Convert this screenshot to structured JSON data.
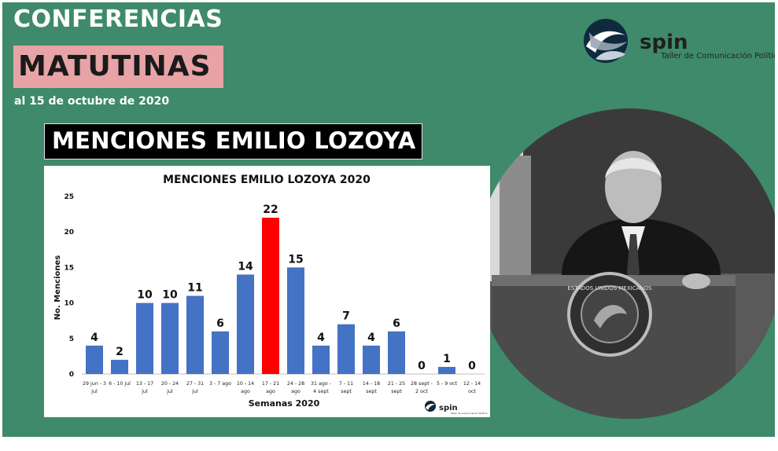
{
  "header": {
    "title_line1": "CONFERENCIAS",
    "title_line2": "MATUTINAS",
    "subtitle": "al 15 de octubre de 2020"
  },
  "logo": {
    "word": "spin",
    "tagline": "Taller de Comunicación Política"
  },
  "banner": "MENCIONES EMILIO LOZOYA",
  "colors": {
    "background": "#3e8a6a",
    "title_box": "#e8a3a6",
    "bar": "#4472c4",
    "highlight_bar": "#ff0000"
  },
  "photo": {
    "podium_text": "ESTADOS UNIDOS MEXICANOS"
  },
  "chart_data": {
    "type": "bar",
    "title": "MENCIONES EMILIO LOZOYA 2020",
    "xlabel": "Semanas 2020",
    "ylabel": "No. Menciones",
    "ylim": [
      0,
      25
    ],
    "yticks": [
      0,
      5,
      10,
      15,
      20,
      25
    ],
    "grid": false,
    "categories": [
      [
        "29 jun - 3",
        "jul"
      ],
      [
        "6 - 10 jul"
      ],
      [
        "13 - 17",
        "jul"
      ],
      [
        "20 - 24",
        "jul"
      ],
      [
        "27 - 31",
        "jul"
      ],
      [
        "3 - 7 ago"
      ],
      [
        "10 - 14",
        "ago"
      ],
      [
        "17 - 21",
        "ago"
      ],
      [
        "24 - 28",
        "ago"
      ],
      [
        "31 ago -",
        "4 sept"
      ],
      [
        "7 - 11",
        "sept"
      ],
      [
        "14 - 18",
        "sept"
      ],
      [
        "21 - 25",
        "sept"
      ],
      [
        "28 sept -",
        "2 oct"
      ],
      [
        "5 - 9 oct"
      ],
      [
        "12 - 14",
        "oct"
      ]
    ],
    "values": [
      4,
      2,
      10,
      10,
      11,
      6,
      14,
      22,
      15,
      4,
      7,
      4,
      6,
      0,
      1,
      0
    ],
    "highlight_index": 7
  }
}
